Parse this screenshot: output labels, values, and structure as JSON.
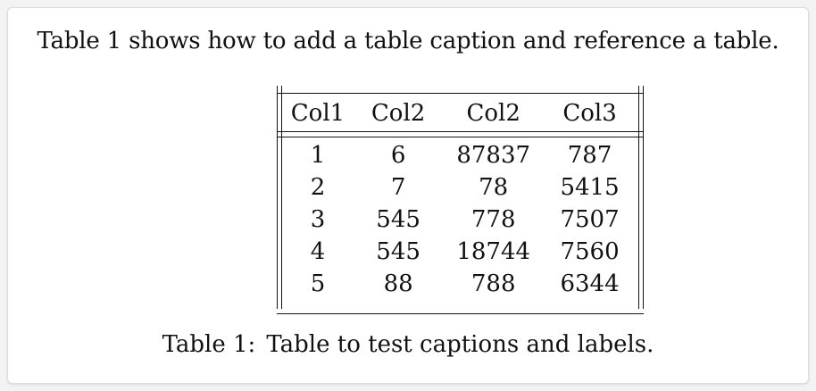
{
  "intro_text": "Table 1 shows how to add a table caption and reference a table.",
  "table": {
    "headers": [
      "Col1",
      "Col2",
      "Col2",
      "Col3"
    ],
    "rows": [
      [
        "1",
        "6",
        "87837",
        "787"
      ],
      [
        "2",
        "7",
        "78",
        "5415"
      ],
      [
        "3",
        "545",
        "778",
        "7507"
      ],
      [
        "4",
        "545",
        "18744",
        "7560"
      ],
      [
        "5",
        "88",
        "788",
        "6344"
      ]
    ]
  },
  "caption": {
    "label": "Table 1:",
    "text": "Table to test captions and labels."
  }
}
